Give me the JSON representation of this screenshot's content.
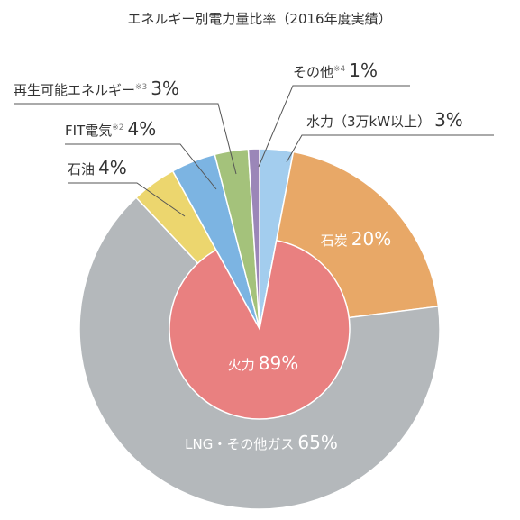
{
  "chart_data": {
    "type": "pie",
    "title": "エネルギー別電力量比率（2016年度実績）",
    "categories": [
      "水力（3万kW以上）",
      "石炭",
      "LNG・その他ガス",
      "石油",
      "FIT電気",
      "再生可能エネルギー",
      "その他"
    ],
    "notes": [
      null,
      null,
      null,
      null,
      "※2",
      "※3",
      "※4"
    ],
    "values": [
      3,
      20,
      65,
      4,
      4,
      3,
      1
    ],
    "value_labels": [
      "3%",
      "20%",
      "65%",
      "4%",
      "4%",
      "3%",
      "1%"
    ],
    "colors": [
      "#a3cdee",
      "#e8a867",
      "#b4b8bb",
      "#ecd66e",
      "#7cb4e2",
      "#a4c27b",
      "#9b86b8"
    ],
    "inner": {
      "name": "火力",
      "value": 89,
      "value_label": "89%",
      "color": "#e98080"
    }
  }
}
